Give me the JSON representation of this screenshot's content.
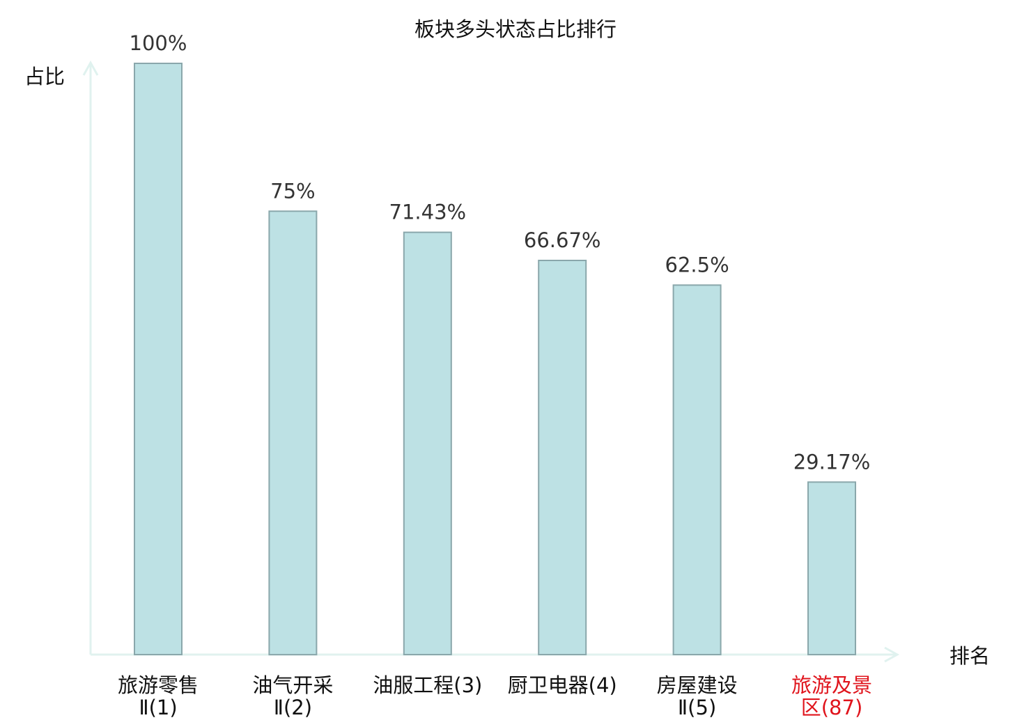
{
  "colors": {
    "bar_fill": "#bde1e4",
    "bar_stroke": "#8aa7ab",
    "axis": "#e0f2ef",
    "text": "#111111",
    "value_label": "#333333",
    "highlight": "#e0141c"
  },
  "chart_data": {
    "type": "bar",
    "title": "板块多头状态占比排行",
    "xlabel": "排名",
    "ylabel": "占比",
    "ylim": [
      0,
      100
    ],
    "grid": false,
    "categories": [
      {
        "name_lines": [
          "旅游零售",
          "Ⅱ(1)"
        ],
        "highlight": false
      },
      {
        "name_lines": [
          "油气开采",
          "Ⅱ(2)"
        ],
        "highlight": false
      },
      {
        "name_lines": [
          "油服工程(3)"
        ],
        "highlight": false
      },
      {
        "name_lines": [
          "厨卫电器(4)"
        ],
        "highlight": false
      },
      {
        "name_lines": [
          "房屋建设",
          "Ⅱ(5)"
        ],
        "highlight": false
      },
      {
        "name_lines": [
          "旅游及景",
          "区(87)"
        ],
        "highlight": true
      }
    ],
    "values": [
      100,
      75,
      71.43,
      66.67,
      62.5,
      29.17
    ],
    "data_labels": [
      "100%",
      "75%",
      "71.43%",
      "66.67%",
      "62.5%",
      "29.17%"
    ]
  }
}
